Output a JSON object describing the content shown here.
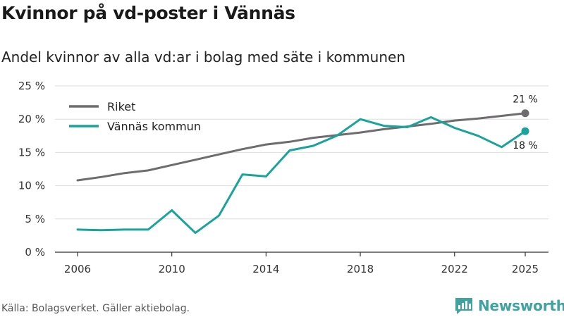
{
  "title": "Kvinnor på vd-poster i Vännäs",
  "subtitle": "Andel kvinnor av alla vd:ar i bolag med säte i kommunen",
  "source": "Källa: Bolagsverket. Gäller aktiebolag.",
  "brand": {
    "name": "Newsworthy"
  },
  "colors": {
    "riket": "#6e6c6f",
    "vannas": "#19a49b",
    "grid": "#dddddd",
    "axis": "#333333"
  },
  "chart_data": {
    "type": "line",
    "title": "Kvinnor på vd-poster i Vännäs",
    "xlabel": "",
    "ylabel": "",
    "xlim": [
      2006,
      2025
    ],
    "ylim": [
      0,
      25
    ],
    "x_ticks": [
      2006,
      2010,
      2014,
      2018,
      2022,
      2025
    ],
    "y_ticks": [
      0,
      5,
      10,
      15,
      20,
      25
    ],
    "y_tick_labels": [
      "0 %",
      "5 %",
      "10 %",
      "15 %",
      "20 %",
      "25 %"
    ],
    "x_tick_labels": [
      "2006",
      "2010",
      "2014",
      "2018",
      "2022",
      "2025"
    ],
    "legend_position": "top-left",
    "x": [
      2006,
      2007,
      2008,
      2009,
      2010,
      2011,
      2012,
      2013,
      2014,
      2015,
      2016,
      2017,
      2018,
      2019,
      2020,
      2021,
      2022,
      2023,
      2024,
      2025
    ],
    "series": [
      {
        "name": "Riket",
        "color_key": "riket",
        "values": [
          10.8,
          11.3,
          11.9,
          12.3,
          13.1,
          13.9,
          14.7,
          15.5,
          16.2,
          16.6,
          17.2,
          17.6,
          18.0,
          18.5,
          18.9,
          19.3,
          19.8,
          20.1,
          20.5,
          20.9
        ],
        "end_label": "21 %"
      },
      {
        "name": "Vännäs kommun",
        "color_key": "vannas",
        "values": [
          3.4,
          3.3,
          3.4,
          3.4,
          6.3,
          2.9,
          5.5,
          11.7,
          11.4,
          15.3,
          16.0,
          17.5,
          20.0,
          19.0,
          18.8,
          20.3,
          18.7,
          17.5,
          15.8,
          18.2
        ],
        "end_label": "18 %"
      }
    ]
  }
}
